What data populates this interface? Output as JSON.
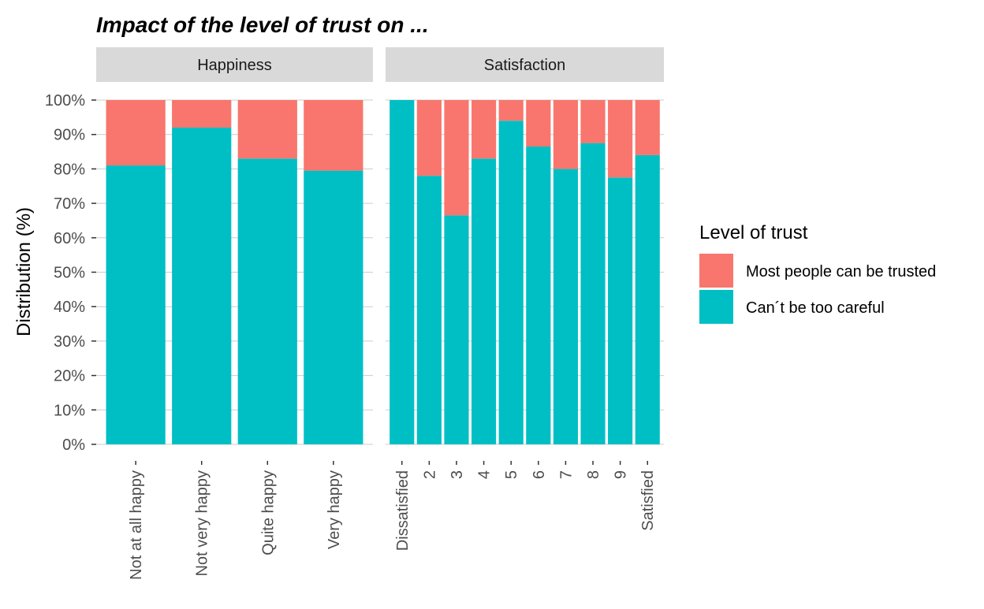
{
  "chart_data": {
    "type": "bar",
    "stacked": true,
    "title": "Impact of the level of trust on ...",
    "ylabel": "Distribution (%)",
    "ylim": [
      0,
      100
    ],
    "yticks": [
      "0%",
      "10%",
      "20%",
      "30%",
      "40%",
      "50%",
      "60%",
      "70%",
      "80%",
      "90%",
      "100%"
    ],
    "grid": true,
    "legend": {
      "title": "Level of trust",
      "position": "right",
      "entries": [
        {
          "name": "Most people can be trusted",
          "color": "#F8766D"
        },
        {
          "name": "Can´t be too careful",
          "color": "#00BFC4"
        }
      ]
    },
    "panels": [
      {
        "strip": "Happiness",
        "categories": [
          "Not at all happy",
          "Not very happy",
          "Quite happy",
          "Very happy"
        ],
        "series": [
          {
            "name": "Can´t be too careful",
            "values": [
              81,
              92,
              83,
              79.5
            ]
          },
          {
            "name": "Most people can be trusted",
            "values": [
              19,
              8,
              17,
              20.5
            ]
          }
        ]
      },
      {
        "strip": "Satisfaction",
        "categories": [
          "Dissatisfied",
          "2",
          "3",
          "4",
          "5",
          "6",
          "7",
          "8",
          "9",
          "Satisfied"
        ],
        "series": [
          {
            "name": "Can´t be too careful",
            "values": [
              100,
              78,
              66.5,
              83,
              94,
              86.5,
              80,
              87.5,
              77.5,
              84
            ]
          },
          {
            "name": "Most people can be trusted",
            "values": [
              0,
              22,
              33.5,
              17,
              6,
              13.5,
              20,
              12.5,
              22.5,
              16
            ]
          }
        ]
      }
    ]
  }
}
